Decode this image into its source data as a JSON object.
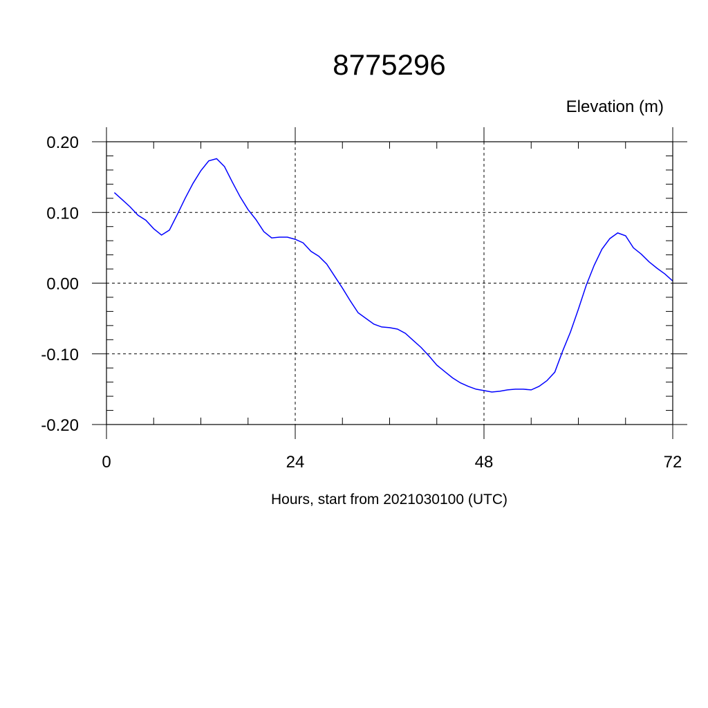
{
  "chart_data": {
    "type": "line",
    "title": "8775296",
    "ylabel": "Elevation (m)",
    "xlabel": "Hours, start from 2021030100 (UTC)",
    "xlim": [
      0,
      72
    ],
    "ylim": [
      -0.2,
      0.2
    ],
    "x_ticks": [
      0,
      24,
      48,
      72
    ],
    "x_tick_labels": [
      "0",
      "24",
      "48",
      "72"
    ],
    "y_ticks": [
      -0.2,
      -0.1,
      0.0,
      0.1,
      0.2
    ],
    "y_tick_labels": [
      "-0.20",
      "-0.10",
      "0.00",
      "0.10",
      "0.20"
    ],
    "grid": true,
    "line_color": "#0000ff",
    "series": [
      {
        "x": [
          1,
          2,
          3,
          4,
          5,
          6,
          7,
          8,
          9,
          10,
          11,
          12,
          13,
          14,
          15,
          16,
          17,
          18,
          19,
          20,
          21,
          22,
          23,
          24,
          25,
          26,
          27,
          28,
          29,
          30,
          31,
          32,
          33,
          34,
          35,
          36,
          37,
          38,
          39,
          40,
          41,
          42,
          43,
          44,
          45,
          46,
          47,
          48,
          49,
          50,
          51,
          52,
          53,
          54,
          55,
          56,
          57,
          58,
          59,
          60,
          61,
          62,
          63,
          64,
          65,
          66,
          67,
          68,
          69,
          70,
          71,
          72
        ],
        "values": [
          0.128,
          0.118,
          0.108,
          0.096,
          0.089,
          0.077,
          0.068,
          0.075,
          0.097,
          0.12,
          0.141,
          0.159,
          0.173,
          0.176,
          0.165,
          0.143,
          0.122,
          0.104,
          0.09,
          0.073,
          0.064,
          0.065,
          0.065,
          0.062,
          0.057,
          0.045,
          0.038,
          0.027,
          0.01,
          -0.007,
          -0.025,
          -0.042,
          -0.05,
          -0.058,
          -0.062,
          -0.063,
          -0.065,
          -0.071,
          -0.081,
          -0.091,
          -0.103,
          -0.116,
          -0.125,
          -0.134,
          -0.141,
          -0.146,
          -0.15,
          -0.152,
          -0.154,
          -0.153,
          -0.151,
          -0.15,
          -0.15,
          -0.151,
          -0.146,
          -0.138,
          -0.126,
          -0.096,
          -0.069,
          -0.037,
          -0.003,
          0.025,
          0.048,
          0.063,
          0.071,
          0.067,
          0.05,
          0.041,
          0.03,
          0.021,
          0.013,
          0.003
        ]
      }
    ]
  }
}
